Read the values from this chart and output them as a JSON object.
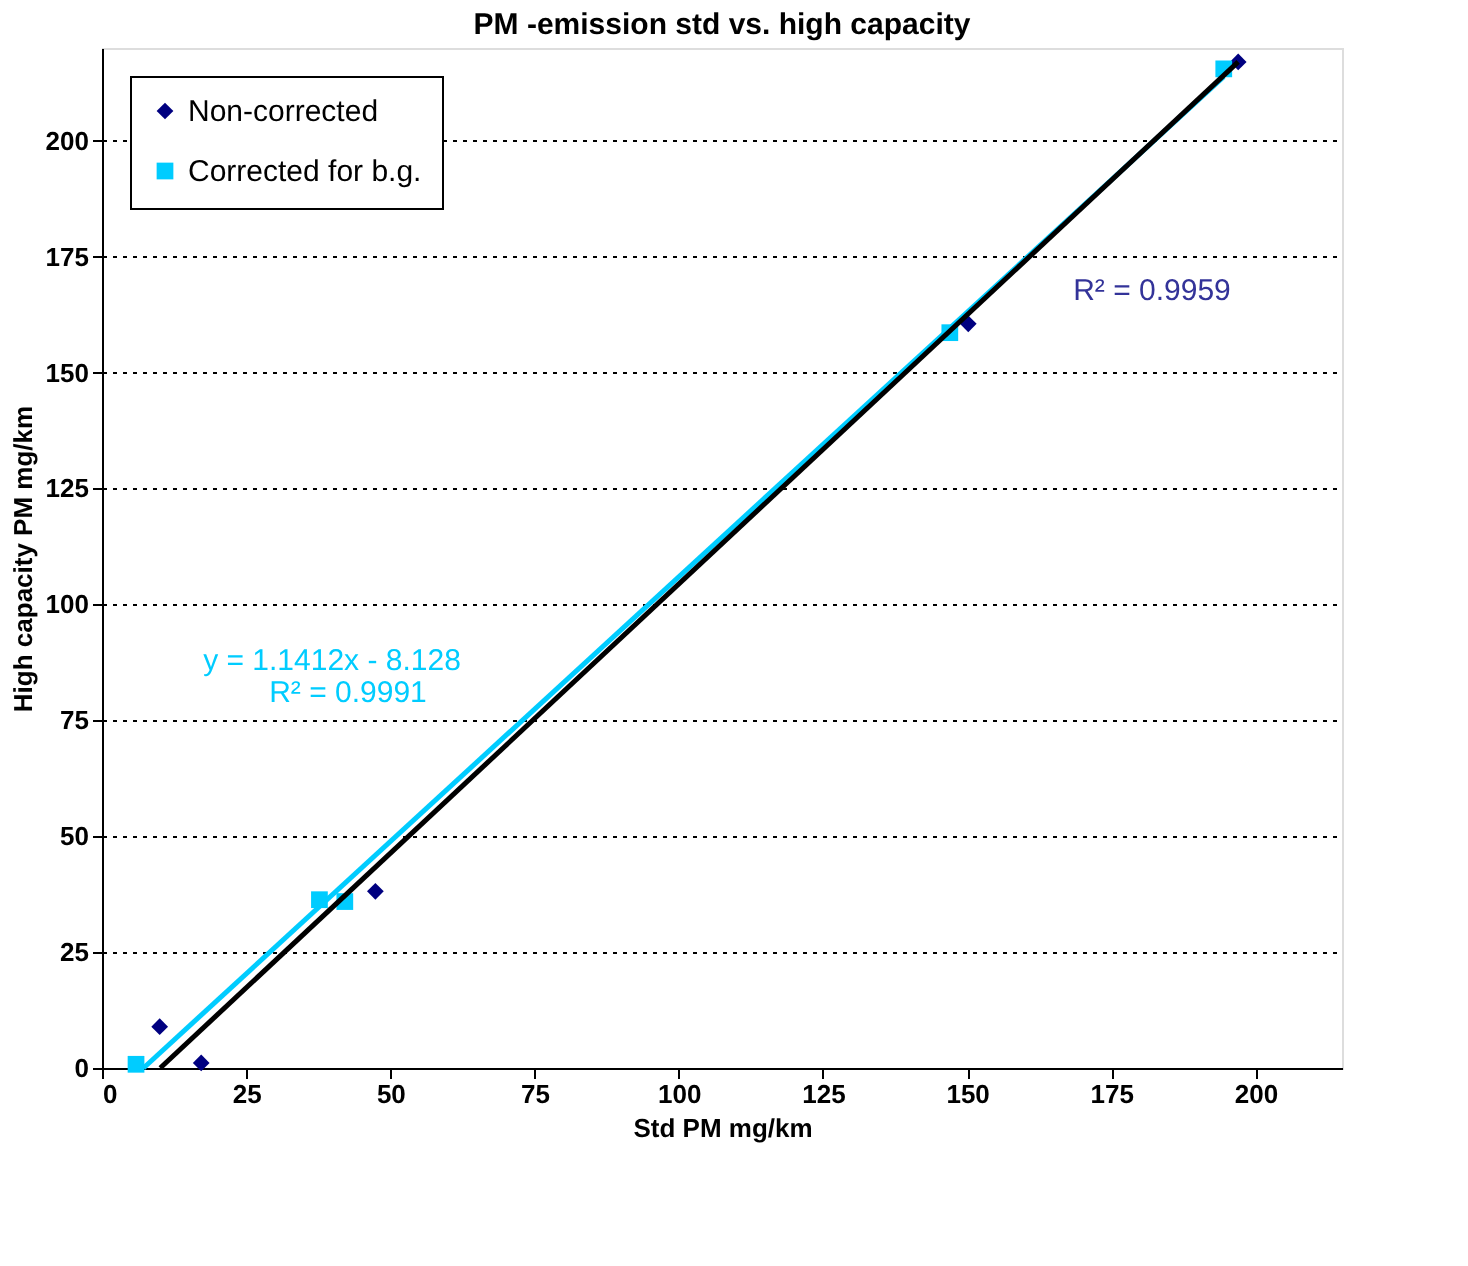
{
  "chart_data": {
    "type": "scatter",
    "title": "PM -emission std vs. high capacity",
    "xlabel": "Std PM mg/km",
    "ylabel": "High capacity PM mg/km",
    "xlim": [
      0,
      215
    ],
    "ylim": [
      0,
      220
    ],
    "xticks": [
      0,
      25,
      50,
      75,
      100,
      125,
      150,
      175,
      200
    ],
    "yticks": [
      0,
      25,
      50,
      75,
      100,
      125,
      150,
      175,
      200
    ],
    "grid": "y",
    "legend": "top left",
    "series": [
      {
        "name": "Non-corrected",
        "color": "#000080",
        "marker": "diamond",
        "x": [
          10.0,
          17.2,
          47.4,
          150.2,
          197
        ],
        "values": [
          8.9,
          1.1,
          38.1,
          160.5,
          217
        ]
      },
      {
        "name": "Corrected for b.g.",
        "color": "#00ccff",
        "marker": "square",
        "x": [
          5.9,
          37.7,
          42.1,
          147,
          194.5
        ],
        "values": [
          0.8,
          36.3,
          35.9,
          158.6,
          215.5
        ]
      },
      {
        "type": "line",
        "color": "#00ccff",
        "x": [
          7.2,
          194.5
        ],
        "values": [
          0,
          213.8
        ]
      },
      {
        "type": "line",
        "color": "#000000",
        "x": [
          10.1,
          197
        ],
        "values": [
          0,
          217
        ]
      }
    ],
    "annotations": [
      "y = 1.1412x - 8.128",
      "R² = 0.9991",
      "R² = 0.9959"
    ]
  }
}
